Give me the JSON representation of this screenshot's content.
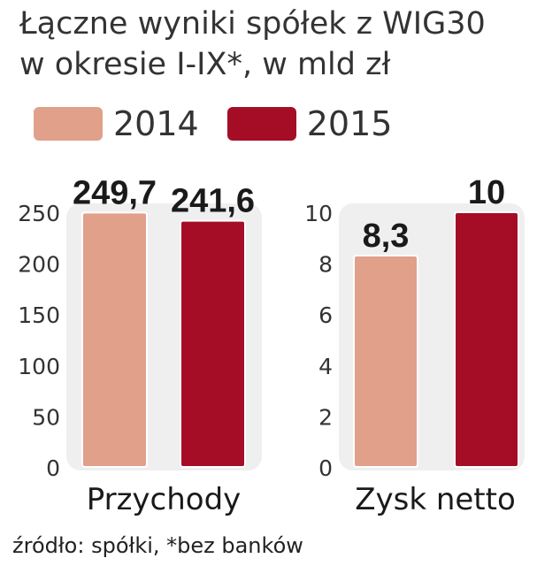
{
  "title_lines": [
    "Łączne wyniki spółek z WIG30",
    "w okresie I-IX*, w mld zł"
  ],
  "legend": [
    {
      "label": "2014",
      "color": "#e0a08a"
    },
    {
      "label": "2015",
      "color": "#a50d27"
    }
  ],
  "source": "źródło: spółki, *bez banków",
  "chart_data": [
    {
      "type": "bar",
      "categories": [
        "Przychody"
      ],
      "series": [
        {
          "name": "2014",
          "values": [
            249.7
          ],
          "labels": [
            "249,7"
          ]
        },
        {
          "name": "2015",
          "values": [
            241.6
          ],
          "labels": [
            "241,6"
          ]
        }
      ],
      "yticks": [
        0,
        50,
        100,
        150,
        200,
        250
      ],
      "ylim": [
        0,
        250
      ],
      "xlabel": "Przychody",
      "grid": false
    },
    {
      "type": "bar",
      "categories": [
        "Zysk netto"
      ],
      "series": [
        {
          "name": "2014",
          "values": [
            8.3
          ],
          "labels": [
            "8,3"
          ]
        },
        {
          "name": "2015",
          "values": [
            10
          ],
          "labels": [
            "10"
          ]
        }
      ],
      "yticks": [
        0,
        2,
        4,
        6,
        8,
        10
      ],
      "ylim": [
        0,
        10
      ],
      "xlabel": "Zysk netto",
      "grid": false
    }
  ]
}
